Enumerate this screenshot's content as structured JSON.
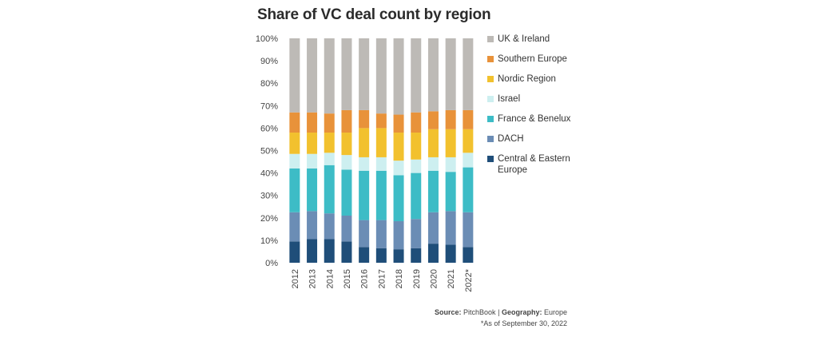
{
  "chart_data": {
    "type": "bar",
    "stacked": true,
    "title": "Share of VC deal count by region",
    "categories": [
      "2012",
      "2013",
      "2014",
      "2015",
      "2016",
      "2017",
      "2018",
      "2019",
      "2020",
      "2021",
      "2022*"
    ],
    "y_ticks": [
      "0%",
      "10%",
      "20%",
      "30%",
      "40%",
      "50%",
      "60%",
      "70%",
      "80%",
      "90%",
      "100%"
    ],
    "ylim": [
      0,
      100
    ],
    "legend_position": "right",
    "series": [
      {
        "name": "Central & Eastern Europe",
        "color": "#1f4e79",
        "values": [
          9.5,
          10.5,
          10.5,
          9.5,
          7,
          6.5,
          6,
          6.5,
          8.5,
          8,
          7
        ]
      },
      {
        "name": "DACH",
        "color": "#6b8db5",
        "values": [
          13,
          12.5,
          11.5,
          11.5,
          12,
          12.5,
          12.5,
          13,
          14,
          15,
          15.5
        ]
      },
      {
        "name": "France & Benelux",
        "color": "#3dbcc6",
        "values": [
          19.5,
          19,
          21.5,
          20.5,
          22,
          22,
          20.5,
          20.5,
          18.5,
          17.5,
          20
        ]
      },
      {
        "name": "Israel",
        "color": "#cdeff0",
        "values": [
          6.5,
          6.5,
          5.5,
          6.5,
          6,
          6,
          6.5,
          6,
          6,
          6.5,
          6.5
        ]
      },
      {
        "name": "Nordic Region",
        "color": "#f2c12e",
        "values": [
          9.5,
          9.5,
          9,
          10,
          13,
          13,
          12.5,
          12,
          12.5,
          12.5,
          10.5
        ]
      },
      {
        "name": "Southern Europe",
        "color": "#e8923a",
        "values": [
          9,
          9,
          8.5,
          10,
          8,
          6.5,
          8,
          9,
          8,
          8.5,
          8.5
        ]
      },
      {
        "name": "UK & Ireland",
        "color": "#bdbab6",
        "values": [
          33,
          33,
          33.5,
          32,
          32,
          33.5,
          34,
          33,
          32.5,
          32,
          32
        ]
      }
    ],
    "legend_order": [
      "UK & Ireland",
      "Southern Europe",
      "Nordic Region",
      "Israel",
      "France & Benelux",
      "DACH",
      "Central & Eastern Europe"
    ]
  },
  "legend_display": [
    {
      "label": "UK & Ireland",
      "color": "#bdbab6"
    },
    {
      "label": "Southern Europe",
      "color": "#e8923a"
    },
    {
      "label": "Nordic Region",
      "color": "#f2c12e"
    },
    {
      "label": "Israel",
      "color": "#cdeff0"
    },
    {
      "label": "France & Benelux",
      "color": "#3dbcc6"
    },
    {
      "label": "DACH",
      "color": "#6b8db5"
    },
    {
      "label": "Central & Eastern Europe",
      "color": "#1f4e79"
    }
  ],
  "footer": {
    "source_label": "Source:",
    "source_value": "PitchBook",
    "separator": "|",
    "geo_label": "Geography:",
    "geo_value": "Europe",
    "note": "*As of September 30, 2022"
  }
}
